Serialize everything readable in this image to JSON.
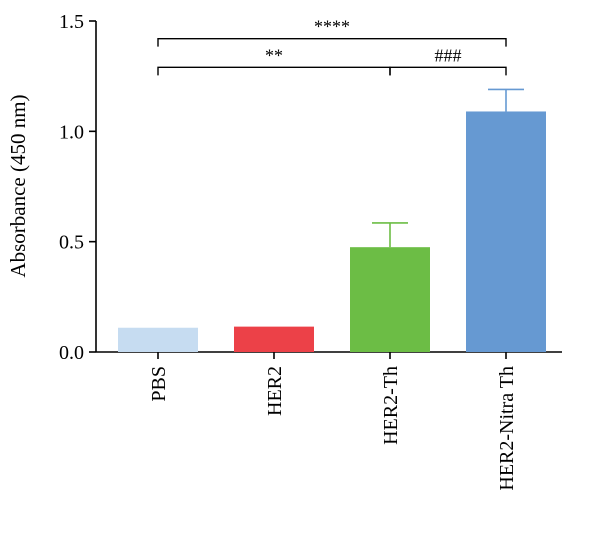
{
  "chart_data": {
    "type": "bar",
    "title": "",
    "xlabel": "",
    "ylabel": "Absorbance (450 nm)",
    "ylim": [
      0,
      1.5
    ],
    "yticks": [
      0.0,
      0.5,
      1.0,
      1.5
    ],
    "ytick_labels": [
      "0.0",
      "0.5",
      "1.0",
      "1.5"
    ],
    "categories": [
      "PBS",
      "HER2",
      "HER2-Th",
      "HER2-Nitra Th"
    ],
    "values": [
      0.11,
      0.115,
      0.475,
      1.09
    ],
    "errors": [
      0.0,
      0.0,
      0.11,
      0.1
    ],
    "colors": [
      "#c6dcf1",
      "#ec4148",
      "#6cbd45",
      "#6699d2"
    ],
    "grid": false,
    "legend": "none",
    "significance": [
      {
        "from": 0,
        "to": 3,
        "label": "****",
        "level": 1.42
      },
      {
        "from": 0,
        "to": 2,
        "label": "**",
        "level": 1.29
      },
      {
        "from": 2,
        "to": 3,
        "label": "###",
        "level": 1.29
      }
    ]
  }
}
